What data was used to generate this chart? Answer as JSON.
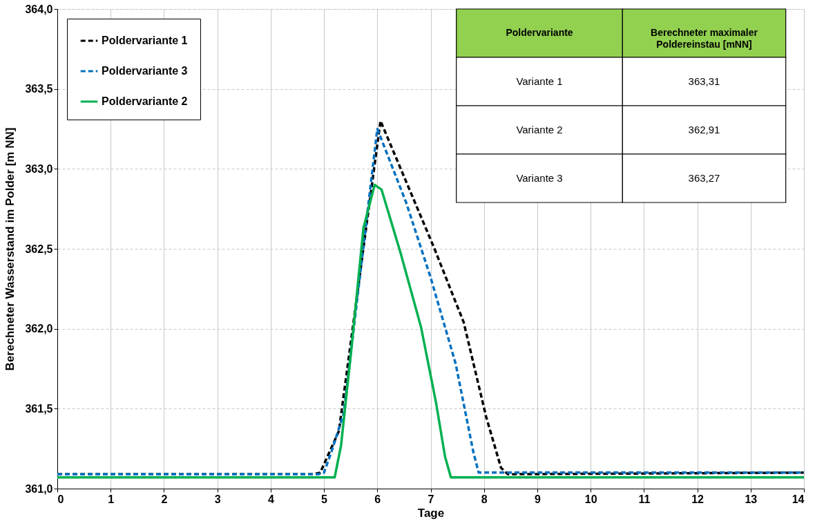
{
  "chart_data": {
    "type": "line",
    "xlabel": "Tage",
    "ylabel": "Berechneter Wasserstand im Polder [m NN]",
    "xlim": [
      0,
      14
    ],
    "xticks": [
      0,
      1,
      2,
      3,
      4,
      5,
      6,
      7,
      8,
      9,
      10,
      11,
      12,
      13,
      14
    ],
    "ylim": [
      361.0,
      364.0
    ],
    "yticks": [
      {
        "value": 361.0,
        "label": "361,0"
      },
      {
        "value": 361.5,
        "label": "361,5"
      },
      {
        "value": 362.0,
        "label": "362,0"
      },
      {
        "value": 362.5,
        "label": "362,5"
      },
      {
        "value": 363.0,
        "label": "363,0"
      },
      {
        "value": 363.5,
        "label": "363,5"
      },
      {
        "value": 364.0,
        "label": "364,0"
      }
    ],
    "grid": true,
    "legend": "top left",
    "series": [
      {
        "name": "Poldervariante 1",
        "color": "#000000",
        "line_style": "dashed",
        "x": [
          0,
          4.8,
          4.93,
          5.28,
          6.06,
          7.06,
          7.62,
          8.04,
          8.32,
          8.45,
          14
        ],
        "values": [
          361.09,
          361.09,
          361.1,
          361.36,
          363.3,
          362.51,
          362.04,
          361.45,
          361.13,
          361.09,
          361.1
        ]
      },
      {
        "name": "Poldervariante 3",
        "color": "#0070c0",
        "line_style": "dashed",
        "x": [
          0,
          4.9,
          5.0,
          5.14,
          5.37,
          6.0,
          6.54,
          7.0,
          7.47,
          7.8,
          7.9,
          14
        ],
        "values": [
          361.09,
          361.09,
          361.1,
          361.23,
          361.47,
          363.25,
          362.79,
          362.32,
          361.78,
          361.23,
          361.1,
          361.1
        ]
      },
      {
        "name": "Poldervariante 2",
        "color": "#00b050",
        "line_style": "solid",
        "x": [
          0,
          5.2,
          5.32,
          5.51,
          5.74,
          5.95,
          6.08,
          6.44,
          6.82,
          7.1,
          7.27,
          7.38,
          14
        ],
        "values": [
          361.07,
          361.07,
          361.27,
          361.86,
          362.63,
          362.9,
          362.87,
          362.47,
          362.01,
          361.54,
          361.2,
          361.07,
          361.07
        ]
      }
    ],
    "annotations": [
      "Poldervariante",
      "Berechneter maximaler Poldereinstau [mNN]",
      "Variante 1",
      "363,31",
      "Variante 2",
      "362,91",
      "Variante 3",
      "363,27"
    ]
  }
}
